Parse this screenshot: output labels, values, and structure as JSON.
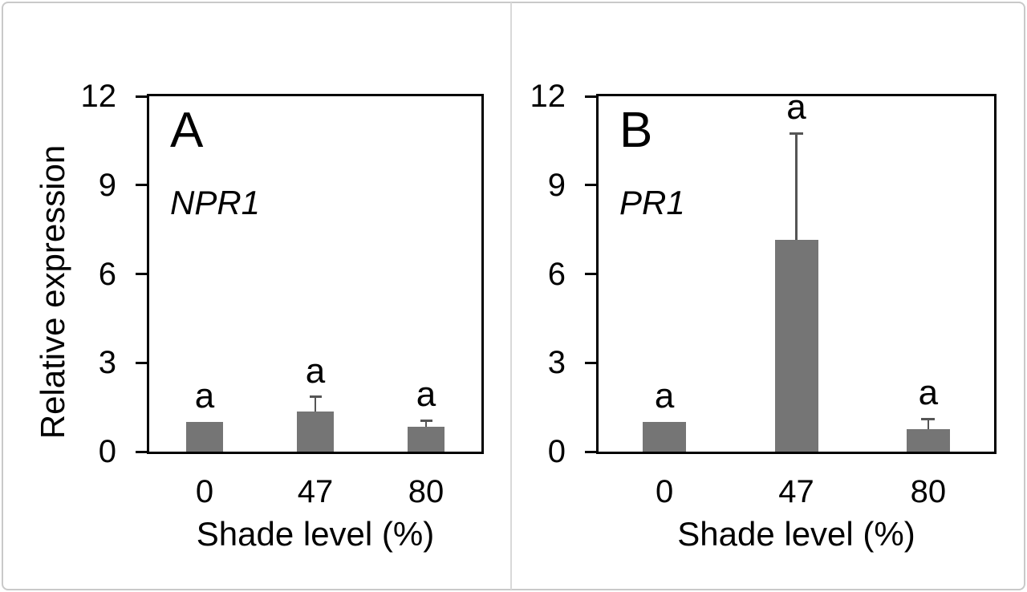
{
  "figure": {
    "ylabel": "Relative expression"
  },
  "colors": {
    "bar_fill": "#757575",
    "error_bar": "#555555",
    "axis": "#000000",
    "frame_border": "#c9c9c9",
    "divider": "#d9d9d9",
    "text": "#000000"
  },
  "chart_data": [
    {
      "type": "bar",
      "panel": "A",
      "gene": "NPR1",
      "categories": [
        "0",
        "47",
        "80"
      ],
      "values": [
        1.0,
        1.35,
        0.85
      ],
      "errors_up": [
        0,
        0.5,
        0.2
      ],
      "sig_letters": [
        "a",
        "a",
        "a"
      ],
      "xlabel": "Shade level (%)",
      "ylabel": "Relative expression",
      "ylim": [
        0,
        12
      ],
      "yticks": [
        0,
        3,
        6,
        9,
        12
      ],
      "grid": "off",
      "legend": "none"
    },
    {
      "type": "bar",
      "panel": "B",
      "gene": "PR1",
      "categories": [
        "0",
        "47",
        "80"
      ],
      "values": [
        1.0,
        7.15,
        0.75
      ],
      "errors_up": [
        0,
        3.6,
        0.35
      ],
      "sig_letters": [
        "a",
        "a",
        "a"
      ],
      "xlabel": "Shade level (%)",
      "ylabel": "",
      "ylim": [
        0,
        12
      ],
      "yticks": [
        0,
        3,
        6,
        9,
        12
      ],
      "grid": "off",
      "legend": "none"
    }
  ]
}
